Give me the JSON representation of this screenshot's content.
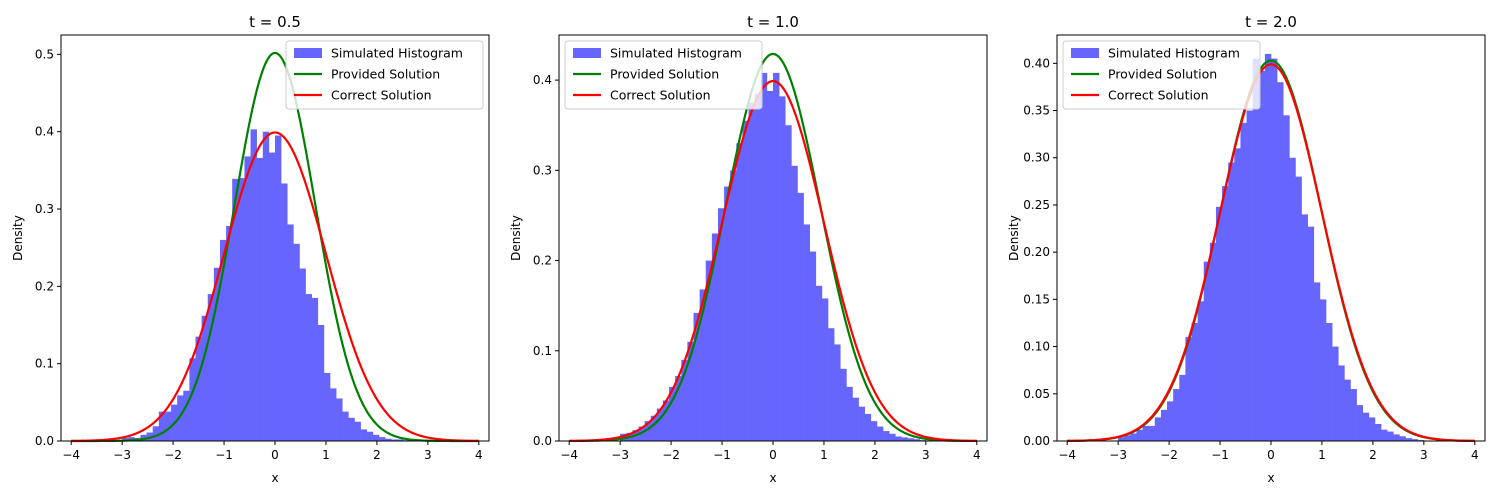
{
  "chart_data": [
    {
      "type": "bar",
      "title": "t = 0.5",
      "xlabel": "x",
      "ylabel": "Density",
      "xlim": [
        -4.2,
        4.2
      ],
      "ylim": [
        0,
        0.525
      ],
      "xticks": [
        -4,
        -3,
        -2,
        -1,
        0,
        1,
        2,
        3,
        4
      ],
      "xtick_labels": [
        "−4",
        "−3",
        "−2",
        "−1",
        "0",
        "1",
        "2",
        "3",
        "4"
      ],
      "yticks": [
        0,
        0.1,
        0.2,
        0.3,
        0.4,
        0.5
      ],
      "ytick_labels": [
        "0.0",
        "0.1",
        "0.2",
        "0.3",
        "0.4",
        "0.5"
      ],
      "legend_position": "top-right",
      "legend": [
        "Simulated Histogram",
        "Provided Solution",
        "Correct Solution"
      ],
      "histogram": {
        "bin_edges_start": -3.0,
        "bin_width": 0.12,
        "values": [
          0.004,
          0.005,
          0.004,
          0.008,
          0.011,
          0.019,
          0.038,
          0.038,
          0.047,
          0.059,
          0.065,
          0.107,
          0.135,
          0.162,
          0.19,
          0.224,
          0.26,
          0.278,
          0.339,
          0.34,
          0.368,
          0.403,
          0.366,
          0.4,
          0.373,
          0.395,
          0.333,
          0.28,
          0.255,
          0.223,
          0.19,
          0.185,
          0.15,
          0.088,
          0.068,
          0.055,
          0.038,
          0.03,
          0.025,
          0.015,
          0.012,
          0.008,
          0.005,
          0.003,
          0.002,
          0.002,
          0.001,
          0.001,
          0.001,
          0.001
        ]
      },
      "series": [
        {
          "name": "Provided Solution",
          "sigma": 0.795
        },
        {
          "name": "Correct Solution",
          "sigma": 1.0
        }
      ]
    },
    {
      "type": "bar",
      "title": "t = 1.0",
      "xlabel": "x",
      "ylabel": "Density",
      "xlim": [
        -4.2,
        4.2
      ],
      "ylim": [
        0,
        0.45
      ],
      "xticks": [
        -4,
        -3,
        -2,
        -1,
        0,
        1,
        2,
        3,
        4
      ],
      "xtick_labels": [
        "−4",
        "−3",
        "−2",
        "−1",
        "0",
        "1",
        "2",
        "3",
        "4"
      ],
      "yticks": [
        0,
        0.1,
        0.2,
        0.3,
        0.4
      ],
      "ytick_labels": [
        "0.0",
        "0.1",
        "0.2",
        "0.3",
        "0.4"
      ],
      "legend_position": "top-left",
      "legend": [
        "Simulated Histogram",
        "Provided Solution",
        "Correct Solution"
      ],
      "histogram": {
        "bin_edges_start": -3.0,
        "bin_width": 0.12,
        "values": [
          0.008,
          0.009,
          0.012,
          0.016,
          0.022,
          0.028,
          0.036,
          0.045,
          0.06,
          0.072,
          0.09,
          0.11,
          0.142,
          0.168,
          0.2,
          0.23,
          0.258,
          0.282,
          0.3,
          0.33,
          0.355,
          0.375,
          0.385,
          0.408,
          0.388,
          0.408,
          0.382,
          0.35,
          0.305,
          0.275,
          0.24,
          0.21,
          0.172,
          0.158,
          0.125,
          0.107,
          0.08,
          0.06,
          0.048,
          0.038,
          0.03,
          0.022,
          0.016,
          0.011,
          0.008,
          0.005,
          0.004,
          0.003,
          0.002,
          0.001
        ]
      },
      "series": [
        {
          "name": "Provided Solution",
          "sigma": 0.93
        },
        {
          "name": "Correct Solution",
          "sigma": 1.0
        }
      ]
    },
    {
      "type": "bar",
      "title": "t = 2.0",
      "xlabel": "x",
      "ylabel": "Density",
      "xlim": [
        -4.2,
        4.2
      ],
      "ylim": [
        0,
        0.43
      ],
      "xticks": [
        -4,
        -3,
        -2,
        -1,
        0,
        1,
        2,
        3,
        4
      ],
      "xtick_labels": [
        "−4",
        "−3",
        "−2",
        "−1",
        "0",
        "1",
        "2",
        "3",
        "4"
      ],
      "yticks": [
        0,
        0.05,
        0.1,
        0.15,
        0.2,
        0.25,
        0.3,
        0.35,
        0.4
      ],
      "ytick_labels": [
        "0.00",
        "0.05",
        "0.10",
        "0.15",
        "0.20",
        "0.25",
        "0.30",
        "0.35",
        "0.40"
      ],
      "legend_position": "top-left",
      "legend": [
        "Simulated Histogram",
        "Provided Solution",
        "Correct Solution"
      ],
      "histogram": {
        "bin_edges_start": -3.0,
        "bin_width": 0.12,
        "values": [
          0.004,
          0.006,
          0.008,
          0.012,
          0.016,
          0.016,
          0.025,
          0.033,
          0.042,
          0.055,
          0.07,
          0.11,
          0.125,
          0.148,
          0.19,
          0.21,
          0.248,
          0.27,
          0.295,
          0.31,
          0.337,
          0.35,
          0.405,
          0.392,
          0.41,
          0.405,
          0.38,
          0.345,
          0.3,
          0.28,
          0.24,
          0.227,
          0.168,
          0.15,
          0.125,
          0.1,
          0.08,
          0.065,
          0.055,
          0.038,
          0.03,
          0.025,
          0.018,
          0.012,
          0.01,
          0.007,
          0.005,
          0.003,
          0.002,
          0.001
        ]
      },
      "series": [
        {
          "name": "Provided Solution",
          "sigma": 0.99
        },
        {
          "name": "Correct Solution",
          "sigma": 1.0
        }
      ]
    }
  ],
  "colors": {
    "histogram": "#6666ff",
    "provided": "#008000",
    "correct": "#ff0000",
    "axes": "#000000"
  }
}
